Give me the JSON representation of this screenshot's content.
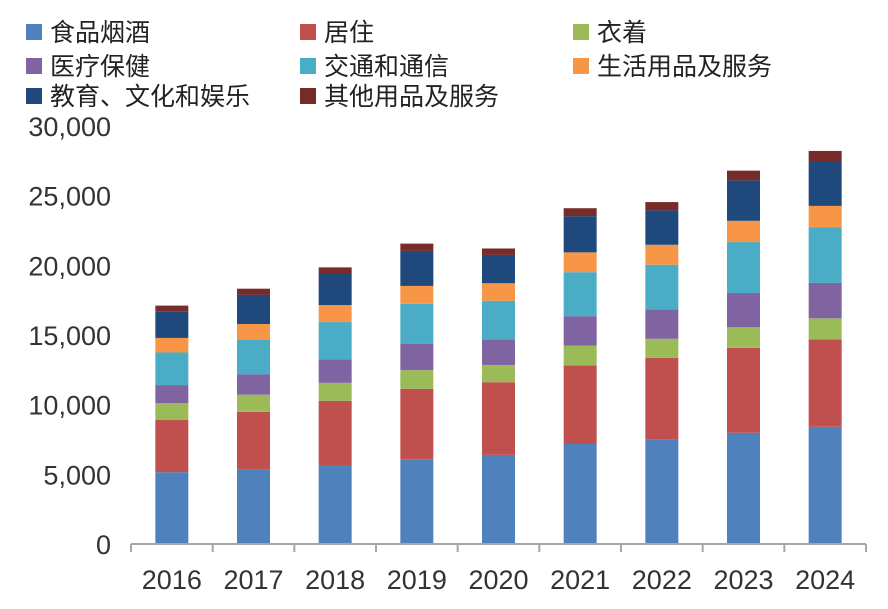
{
  "chart_data": {
    "type": "bar",
    "stacked": true,
    "title": "",
    "xlabel": "",
    "ylabel": "",
    "ylim": [
      0,
      30000
    ],
    "yticks": [
      0,
      5000,
      10000,
      15000,
      20000,
      25000,
      30000
    ],
    "ytick_labels": [
      "0",
      "5,000",
      "10,000",
      "15,000",
      "20,000",
      "25,000",
      "30,000"
    ],
    "legend_position": "top",
    "categories": [
      "2016",
      "2017",
      "2018",
      "2019",
      "2020",
      "2021",
      "2022",
      "2023",
      "2024"
    ],
    "series": [
      {
        "name": "食品烟酒",
        "color": "#4f81bd",
        "values": [
          5151,
          5374,
          5631,
          6084,
          6397,
          7178,
          7481,
          7983,
          8411
        ]
      },
      {
        "name": "居住",
        "color": "#c0504d",
        "values": [
          3746,
          4107,
          4647,
          5055,
          5215,
          5641,
          5882,
          6095,
          6263
        ]
      },
      {
        "name": "衣着",
        "color": "#9bbb59",
        "values": [
          1203,
          1238,
          1289,
          1338,
          1238,
          1419,
          1365,
          1479,
          1521
        ]
      },
      {
        "name": "医疗保健",
        "color": "#8064a2",
        "values": [
          1307,
          1451,
          1685,
          1902,
          1843,
          2115,
          2120,
          2460,
          2547
        ]
      },
      {
        "name": "交通和通信",
        "color": "#4bacc6",
        "values": [
          2338,
          2499,
          2675,
          2862,
          2762,
          3156,
          3195,
          3652,
          3976
        ]
      },
      {
        "name": "生活用品及服务",
        "color": "#f79646",
        "values": [
          1044,
          1121,
          1223,
          1281,
          1260,
          1423,
          1432,
          1526,
          1547
        ]
      },
      {
        "name": "教育、文化和娱乐",
        "color": "#1f497d",
        "values": [
          1915,
          2086,
          2226,
          2513,
          2032,
          2599,
          2469,
          2904,
          3189
        ]
      },
      {
        "name": "其他用品及服务",
        "color": "#772c2a",
        "values": [
          406,
          447,
          477,
          524,
          462,
          569,
          595,
          697,
          756
        ]
      }
    ]
  }
}
